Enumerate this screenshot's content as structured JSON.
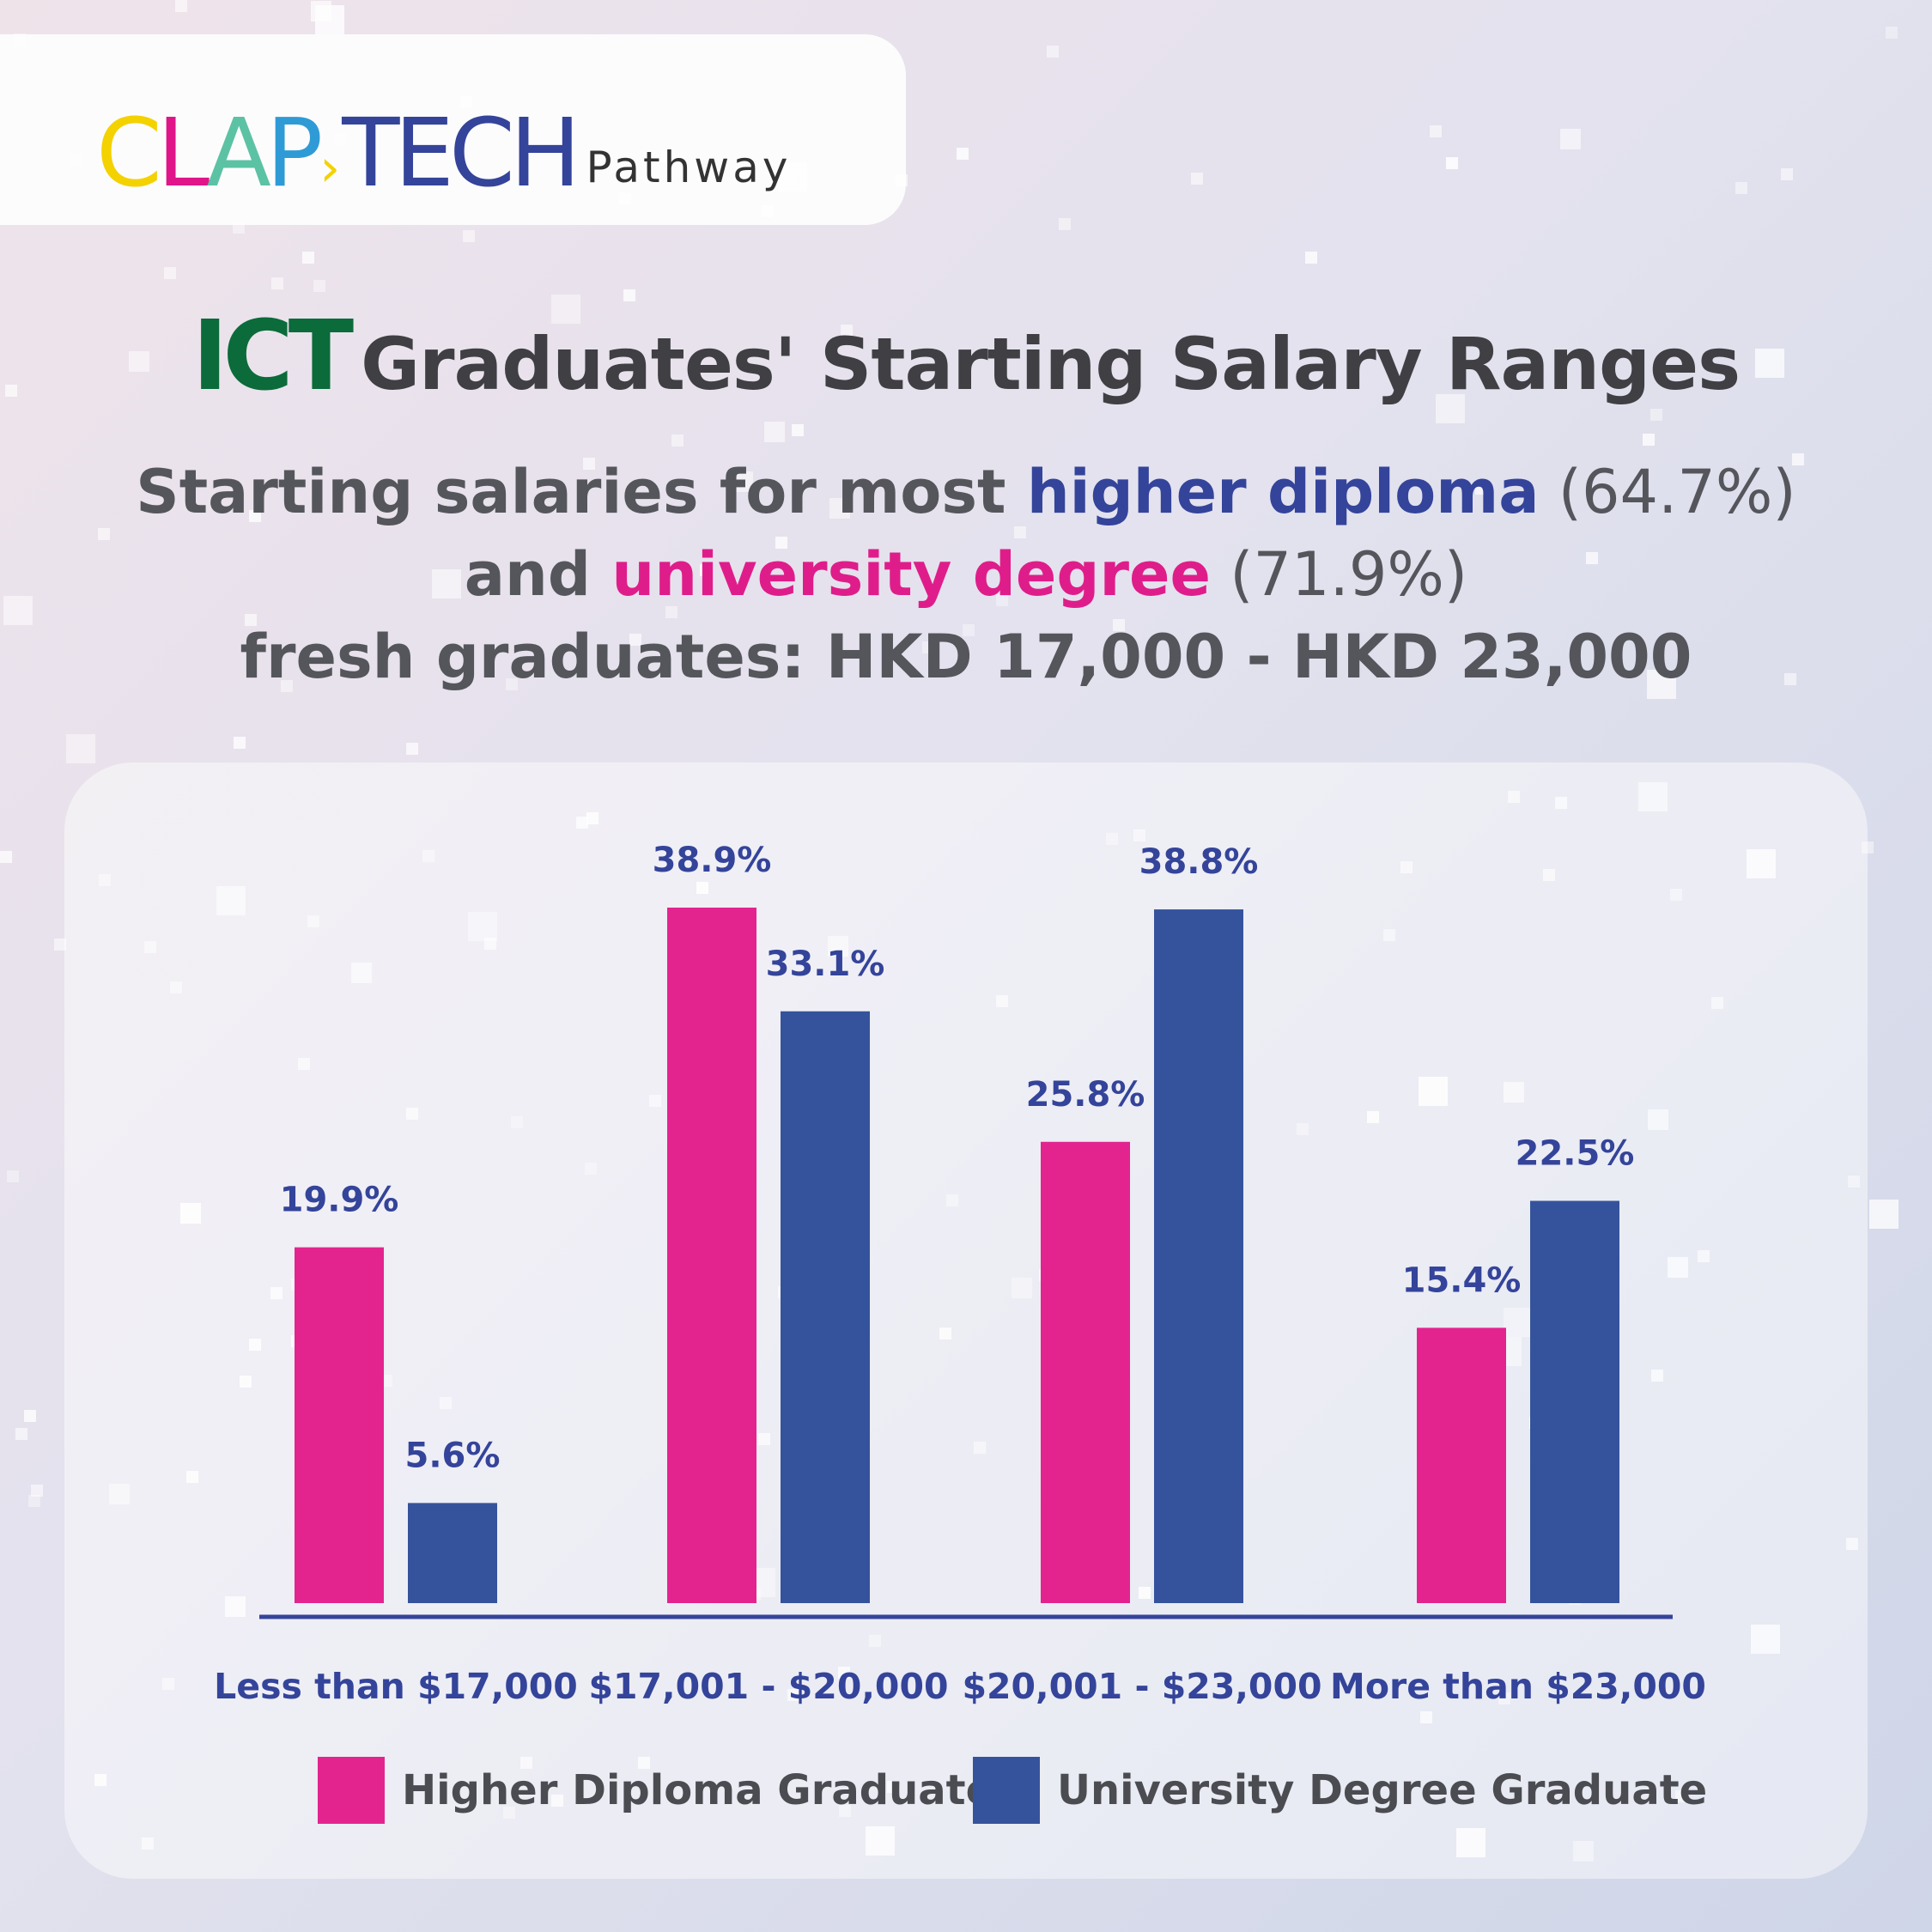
{
  "brand": {
    "logo_letters": [
      "C",
      "L",
      "A",
      "P",
      "T",
      "E",
      "C",
      "H"
    ],
    "logo_colors": [
      "#f3d200",
      "#e0158a",
      "#5cc2a4",
      "#2f9bd6",
      "#34449a",
      "#34449a",
      "#34449a",
      "#34449a"
    ],
    "logo_arrow": "›",
    "tagline": "Pathway"
  },
  "title": {
    "emphasis": "ICT",
    "rest": "Graduates' Starting Salary Ranges"
  },
  "subtitle": {
    "line1_pre": "Starting salaries for most ",
    "line1_highlight": "higher diploma",
    "line1_post": " (64.7%)",
    "line2_pre": "and ",
    "line2_highlight": "university degree",
    "line2_post": " (71.9%)",
    "line3": "fresh graduates: HKD 17,000 - HKD 23,000"
  },
  "colors": {
    "higher_diploma": "#e3248f",
    "university_degree": "#35539c",
    "axis": "#34449a",
    "title_green": "#0b6b3a"
  },
  "chart_data": {
    "type": "bar",
    "categories": [
      "Less than $17,000",
      "$17,001 - $20,000",
      "$20,001 - $23,000",
      "More than $23,000"
    ],
    "series": [
      {
        "name": "Higher Diploma Graduate",
        "values": [
          19.9,
          38.9,
          25.8,
          15.4
        ],
        "labels": [
          "19.9%",
          "38.9%",
          "25.8%",
          "15.4%"
        ]
      },
      {
        "name": "University Degree Graduate",
        "values": [
          5.6,
          33.1,
          38.8,
          22.5
        ],
        "labels": [
          "5.6%",
          "33.1%",
          "38.8%",
          "22.5%"
        ]
      }
    ],
    "ylim": [
      0,
      38.9
    ],
    "grid": false,
    "legend_position": "bottom"
  }
}
